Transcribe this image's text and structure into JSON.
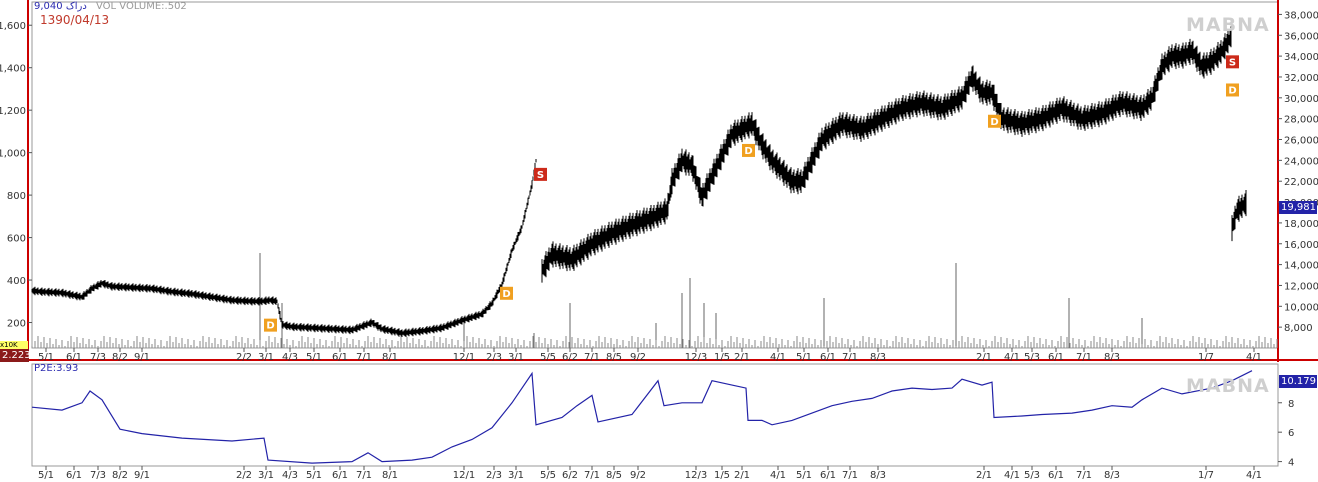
{
  "header": {
    "ticker": "9,040 دراک",
    "volume_label": "VOL  VOLUME:.502",
    "date": "1390/04/13",
    "watermark": "MABNA",
    "indicator_label": "P2E:3.93",
    "last_price_tag": "19,981",
    "last_indicator_tag": "10.179",
    "left_value_tag": "2.223",
    "left_yellow_label": "x10K"
  },
  "colors": {
    "frame_red": "#cc0000",
    "price_bars": "#000000",
    "indicator_line": "#2323a8",
    "tag_blue": "#2323a8",
    "signal_sell": "#cc2a1a",
    "signal_d": "#f0a020"
  },
  "chart_data": [
    {
      "type": "line",
      "style": "ohlc-bars",
      "left_axis": {
        "ticks": [
          200,
          400,
          600,
          800,
          1000,
          1200,
          1400,
          1600
        ],
        "range": [
          80,
          1700
        ]
      },
      "right_axis": {
        "ticks": [
          "8,000",
          "10,000",
          "12,000",
          "14,000",
          "16,000",
          "18,000",
          "20,000",
          "22,000",
          "24,000",
          "26,000",
          "28,000",
          "30,000",
          "32,000",
          "34,000",
          "36,000",
          "38,000"
        ],
        "range": [
          6000,
          39000
        ]
      },
      "x_ticks": [
        "5/1",
        "6/1",
        "7/3",
        "8/2",
        "9/1",
        "2/2",
        "3/1",
        "4/3",
        "5/1",
        "6/1",
        "7/1",
        "8/1",
        "12/1",
        "2/3",
        "3/1",
        "5/5",
        "6/2",
        "7/1",
        "8/5",
        "9/2",
        "12/3",
        "1/5",
        "2/1",
        "4/1",
        "5/1",
        "6/1",
        "7/1",
        "8/3",
        "2/1",
        "4/1",
        "5/3",
        "6/1",
        "7/1",
        "8/3",
        "1/7",
        "4/1"
      ],
      "x_tick_index": [
        14,
        42,
        66,
        88,
        110,
        212,
        234,
        258,
        282,
        308,
        332,
        358,
        432,
        462,
        484,
        516,
        538,
        560,
        582,
        606,
        664,
        690,
        710,
        746,
        772,
        796,
        818,
        846,
        952,
        980,
        1000,
        1024,
        1052,
        1080,
        1174,
        1222
      ],
      "series": [
        {
          "axis": "left",
          "points": [
            [
              0,
              350
            ],
            [
              10,
              345
            ],
            [
              30,
              340
            ],
            [
              50,
              320
            ],
            [
              60,
              360
            ],
            [
              70,
              385
            ],
            [
              80,
              370
            ],
            [
              100,
              365
            ],
            [
              120,
              360
            ],
            [
              140,
              345
            ],
            [
              160,
              335
            ],
            [
              180,
              320
            ],
            [
              200,
              305
            ],
            [
              220,
              300
            ],
            [
              230,
              300
            ],
            [
              238,
              305
            ],
            [
              245,
              300
            ],
            [
              250,
              190
            ],
            [
              260,
              180
            ],
            [
              280,
              175
            ],
            [
              300,
              170
            ],
            [
              320,
              165
            ],
            [
              340,
              200
            ],
            [
              350,
              170
            ],
            [
              370,
              150
            ],
            [
              390,
              160
            ],
            [
              410,
              175
            ],
            [
              430,
              210
            ],
            [
              450,
              240
            ],
            [
              460,
              290
            ],
            [
              470,
              380
            ],
            [
              480,
              540
            ],
            [
              490,
              650
            ],
            [
              500,
              850
            ],
            [
              505,
              990
            ]
          ]
        },
        {
          "axis": "right",
          "points": [
            [
              510,
              13400
            ],
            [
              520,
              15000
            ],
            [
              540,
              14500
            ],
            [
              560,
              16000
            ],
            [
              580,
              17000
            ],
            [
              600,
              17800
            ],
            [
              620,
              18500
            ],
            [
              635,
              19200
            ],
            [
              640,
              22000
            ],
            [
              650,
              24000
            ],
            [
              660,
              23500
            ],
            [
              670,
              20500
            ],
            [
              680,
              22500
            ],
            [
              690,
              24500
            ],
            [
              700,
              26500
            ],
            [
              710,
              27000
            ],
            [
              720,
              27500
            ],
            [
              730,
              25500
            ],
            [
              740,
              24000
            ],
            [
              750,
              23000
            ],
            [
              760,
              22000
            ],
            [
              770,
              22000
            ],
            [
              780,
              24000
            ],
            [
              790,
              26000
            ],
            [
              810,
              27500
            ],
            [
              830,
              27000
            ],
            [
              850,
              28000
            ],
            [
              870,
              29000
            ],
            [
              890,
              29500
            ],
            [
              910,
              29000
            ],
            [
              930,
              30000
            ],
            [
              940,
              32000
            ],
            [
              950,
              30500
            ],
            [
              960,
              30500
            ],
            [
              970,
              28000
            ],
            [
              990,
              27500
            ],
            [
              1010,
              28000
            ],
            [
              1030,
              29000
            ],
            [
              1050,
              28000
            ],
            [
              1070,
              28500
            ],
            [
              1090,
              29500
            ],
            [
              1110,
              29000
            ],
            [
              1120,
              30000
            ],
            [
              1130,
              33000
            ],
            [
              1140,
              34000
            ],
            [
              1150,
              34000
            ],
            [
              1160,
              34500
            ],
            [
              1170,
              33000
            ],
            [
              1180,
              33500
            ],
            [
              1190,
              34500
            ],
            [
              1200,
              36000
            ]
          ]
        },
        {
          "axis": "right",
          "points": [
            [
              1200,
              17500
            ],
            [
              1205,
              19200
            ],
            [
              1215,
              19981
            ]
          ]
        }
      ],
      "volume_spikes": [
        [
          228,
          0.95
        ],
        [
          250,
          0.45
        ],
        [
          432,
          0.25
        ],
        [
          502,
          0.15
        ],
        [
          538,
          0.45
        ],
        [
          624,
          0.25
        ],
        [
          650,
          0.55
        ],
        [
          658,
          0.7
        ],
        [
          672,
          0.45
        ],
        [
          684,
          0.35
        ],
        [
          792,
          0.5
        ],
        [
          924,
          0.85
        ],
        [
          1037,
          0.5
        ],
        [
          1110,
          0.3
        ]
      ],
      "signals": [
        {
          "label": "D",
          "i": 238,
          "v": 190,
          "axis": "left"
        },
        {
          "label": "D",
          "i": 474,
          "v": 340,
          "axis": "left"
        },
        {
          "label": "S",
          "i": 508,
          "v": 900,
          "axis": "left"
        },
        {
          "label": "D",
          "i": 716,
          "v": 25000,
          "axis": "right"
        },
        {
          "label": "D",
          "i": 962,
          "v": 27800,
          "axis": "right"
        },
        {
          "label": "S",
          "i": 1200,
          "v": 33500,
          "axis": "right"
        },
        {
          "label": "D",
          "i": 1200,
          "v": 30800,
          "axis": "right"
        }
      ]
    },
    {
      "type": "line",
      "name": "P2E",
      "y_ticks": [
        4,
        6,
        8
      ],
      "ylim": [
        3.7,
        10.5
      ],
      "points": [
        [
          0,
          7.7
        ],
        [
          30,
          7.5
        ],
        [
          50,
          8.0
        ],
        [
          58,
          8.8
        ],
        [
          70,
          8.2
        ],
        [
          88,
          6.2
        ],
        [
          110,
          5.9
        ],
        [
          150,
          5.6
        ],
        [
          200,
          5.4
        ],
        [
          232,
          5.6
        ],
        [
          236,
          4.1
        ],
        [
          280,
          3.9
        ],
        [
          320,
          4.0
        ],
        [
          336,
          4.6
        ],
        [
          350,
          4.0
        ],
        [
          380,
          4.1
        ],
        [
          400,
          4.3
        ],
        [
          420,
          5.0
        ],
        [
          440,
          5.5
        ],
        [
          460,
          6.3
        ],
        [
          480,
          8.0
        ],
        [
          500,
          10.0
        ],
        [
          504,
          6.5
        ],
        [
          530,
          7.0
        ],
        [
          545,
          7.8
        ],
        [
          560,
          8.5
        ],
        [
          566,
          6.7
        ],
        [
          600,
          7.2
        ],
        [
          626,
          9.5
        ],
        [
          632,
          7.8
        ],
        [
          650,
          8.0
        ],
        [
          670,
          8.0
        ],
        [
          680,
          9.5
        ],
        [
          700,
          9.2
        ],
        [
          714,
          9.0
        ],
        [
          716,
          6.8
        ],
        [
          730,
          6.8
        ],
        [
          740,
          6.5
        ],
        [
          760,
          6.8
        ],
        [
          780,
          7.3
        ],
        [
          800,
          7.8
        ],
        [
          820,
          8.1
        ],
        [
          840,
          8.3
        ],
        [
          860,
          8.8
        ],
        [
          880,
          9.0
        ],
        [
          900,
          8.9
        ],
        [
          920,
          9.0
        ],
        [
          930,
          9.6
        ],
        [
          950,
          9.2
        ],
        [
          960,
          9.4
        ],
        [
          962,
          7.0
        ],
        [
          990,
          7.1
        ],
        [
          1010,
          7.2
        ],
        [
          1040,
          7.3
        ],
        [
          1060,
          7.5
        ],
        [
          1080,
          7.8
        ],
        [
          1100,
          7.7
        ],
        [
          1110,
          8.2
        ],
        [
          1130,
          9.0
        ],
        [
          1150,
          8.6
        ],
        [
          1180,
          9.0
        ],
        [
          1200,
          9.5
        ],
        [
          1220,
          10.179
        ]
      ]
    }
  ]
}
